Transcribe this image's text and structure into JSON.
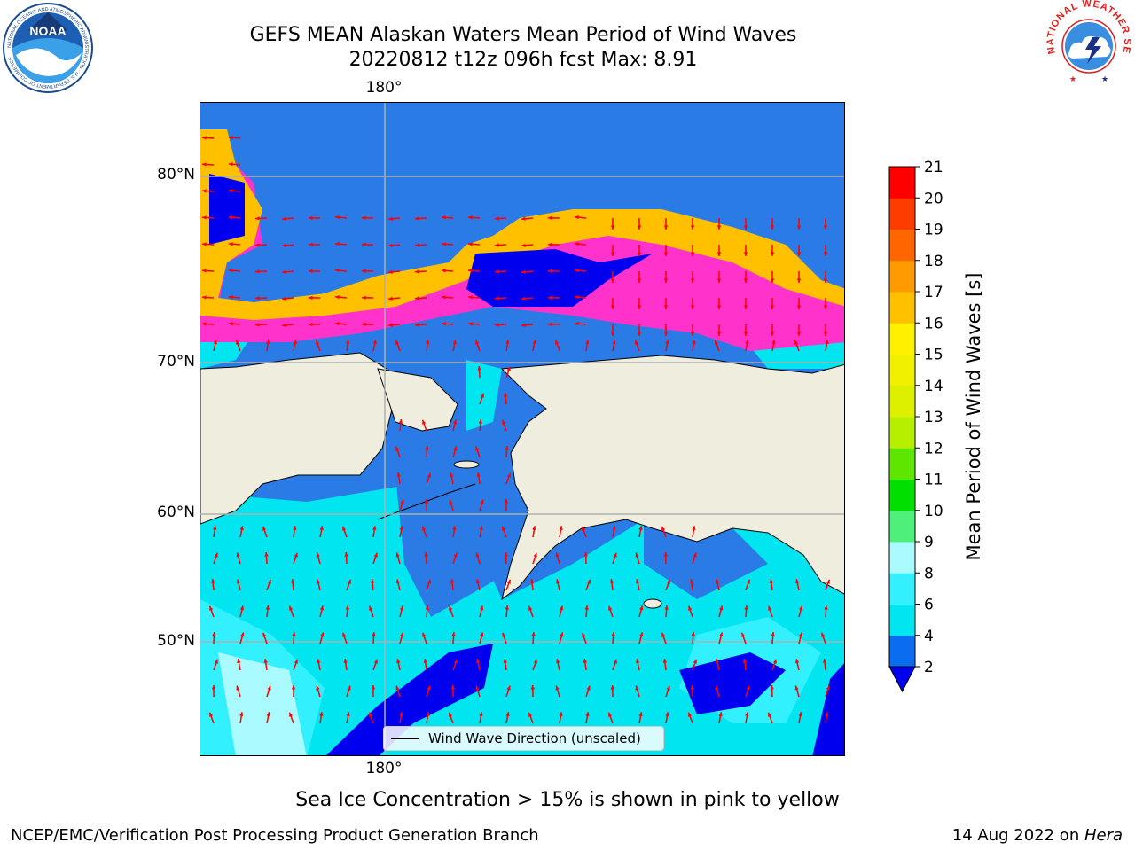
{
  "header": {
    "title_line1": "GEFS MEAN Alaskan Waters Mean Period of Wind Waves",
    "title_line2": "20220812 t12z 096h fcst   Max: 8.91"
  },
  "logos": {
    "left": "NOAA",
    "left_ring": "NATIONAL OCEANIC AND ATMOSPHERIC ADMINISTRATION · U.S. DEPARTMENT OF COMMERCE",
    "right_ring": "NATIONAL WEATHER SERVICE"
  },
  "map": {
    "lon_label_top": "180°",
    "lon_label_bottom": "180°",
    "lat_labels": [
      "80°N",
      "70°N",
      "60°N",
      "50°N"
    ],
    "land_color": "#efedde",
    "arrow_color": "#ff0000",
    "gridline_color": "#b0b0b0",
    "legend_text": "Wind Wave Direction (unscaled)"
  },
  "colorbar": {
    "label": "Mean Period of Wind Waves [s]",
    "ticks": [
      "2",
      "4",
      "6",
      "8",
      "9",
      "10",
      "11",
      "12",
      "13",
      "14",
      "15",
      "16",
      "17",
      "18",
      "19",
      "20",
      "21"
    ],
    "colors": [
      "#0a6cf0",
      "#00e5f0",
      "#33f0ff",
      "#a9fbff",
      "#4ef07a",
      "#00e000",
      "#5ee600",
      "#b6f000",
      "#dcf000",
      "#f0f000",
      "#fff000",
      "#ffc000",
      "#ff9a00",
      "#ff6600",
      "#ff3c00",
      "#ff0000"
    ],
    "extend_color": "#0000ee"
  },
  "footer": {
    "note": "Sea Ice Concentration > 15% is shown in pink to yellow",
    "left": "NCEP/EMC/Verification Post Processing Product Generation Branch",
    "right_date": "14 Aug 2022 on ",
    "right_host": "Hera"
  }
}
